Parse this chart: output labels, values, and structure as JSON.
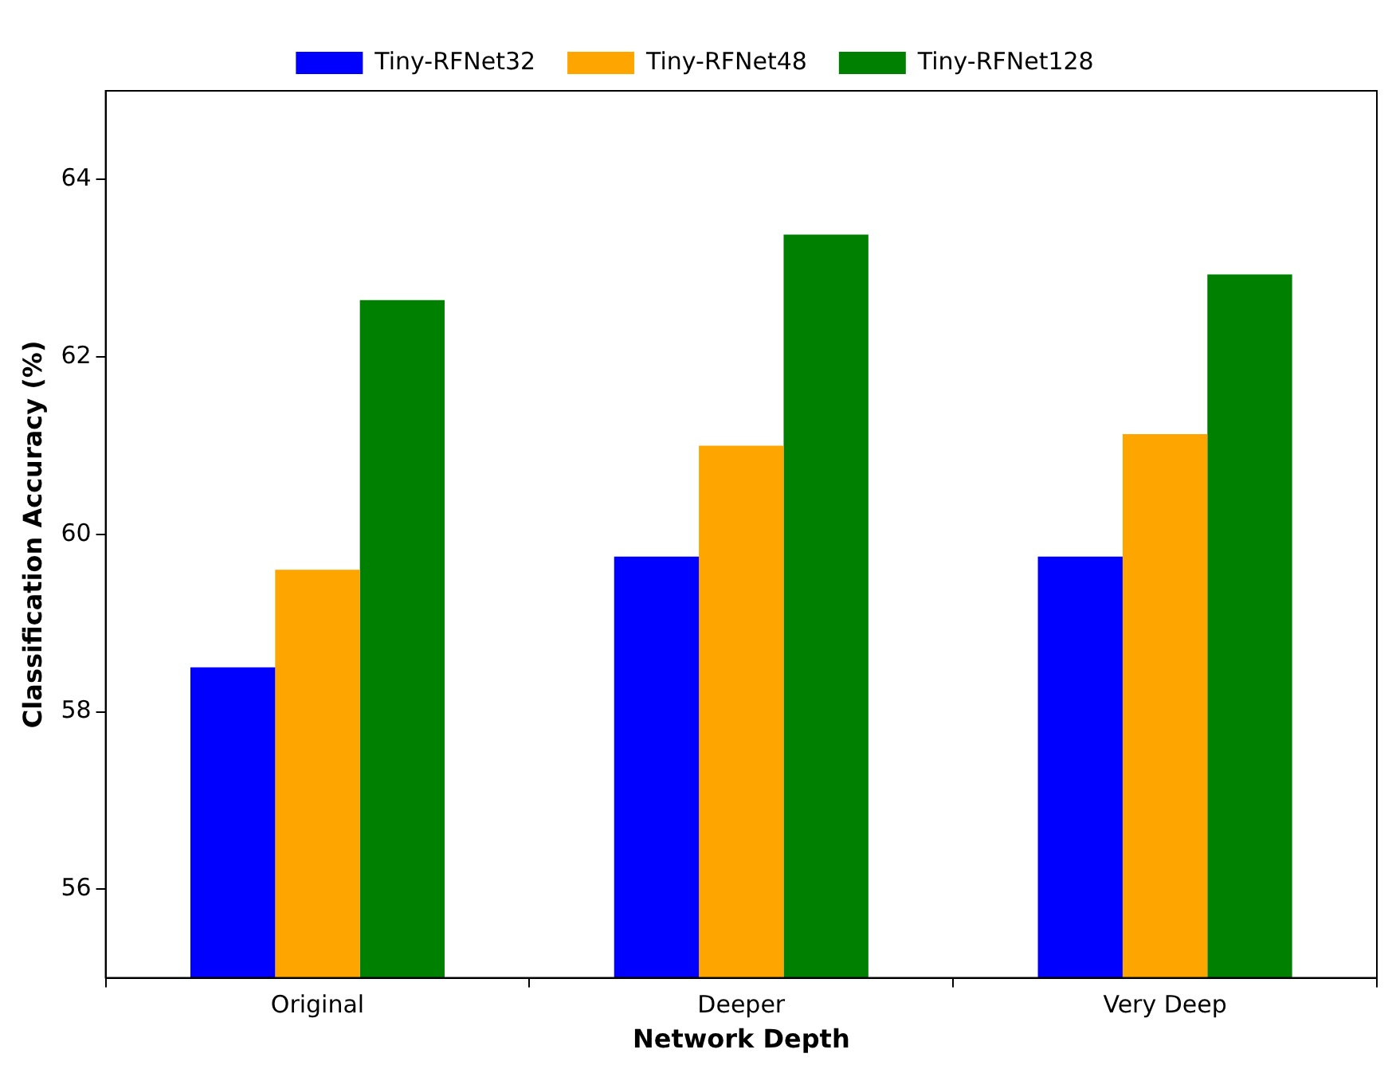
{
  "chart_data": {
    "type": "bar",
    "xlabel": "Network Depth",
    "ylabel": "Classification Accuracy (%)",
    "categories": [
      "Original",
      "Deeper",
      "Very Deep"
    ],
    "series": [
      {
        "name": "Tiny-RFNet32",
        "color": "#0000ff",
        "values": [
          58.5,
          59.75,
          59.75
        ]
      },
      {
        "name": "Tiny-RFNet48",
        "color": "#ffa500",
        "values": [
          59.6,
          61.0,
          61.13
        ]
      },
      {
        "name": "Tiny-RFNet128",
        "color": "#008000",
        "values": [
          62.64,
          63.38,
          62.93
        ]
      }
    ],
    "ylim": [
      55,
      65
    ],
    "yticks": [
      56,
      58,
      60,
      62,
      64
    ],
    "grid": false,
    "legend": "top"
  }
}
